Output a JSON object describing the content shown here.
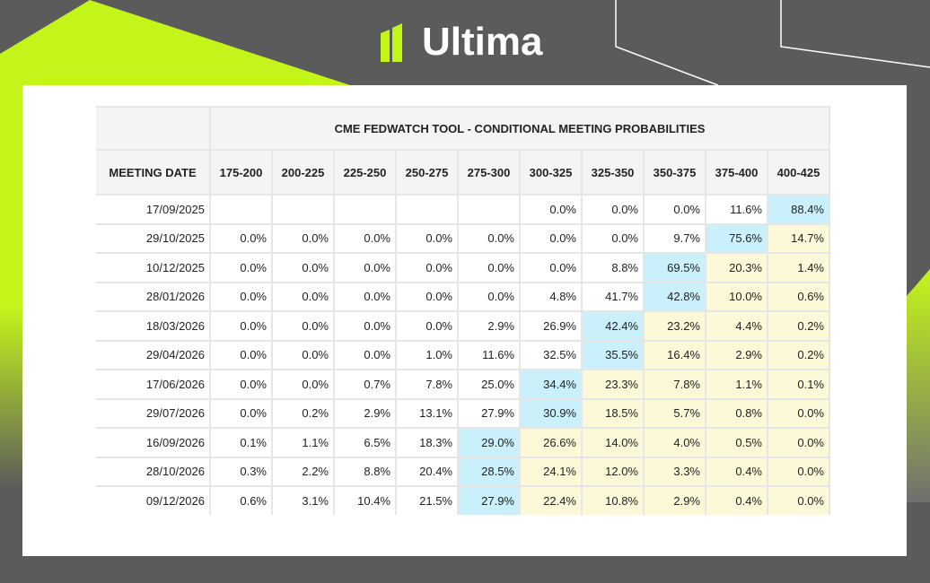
{
  "brand": {
    "name": "Ultima",
    "accent": "#c4f51a",
    "background": "#5b5b5b"
  },
  "table": {
    "title": "CME FEDWATCH TOOL - CONDITIONAL MEETING PROBABILITIES",
    "date_header": "MEETING DATE",
    "columns": [
      "175-200",
      "200-225",
      "225-250",
      "250-275",
      "275-300",
      "300-325",
      "325-350",
      "350-375",
      "375-400",
      "400-425"
    ],
    "highlight_colors": {
      "max": "#c9f0fb",
      "above_max": "#fbf9d8"
    },
    "rows": [
      {
        "date": "17/09/2025",
        "values": [
          "",
          "",
          "",
          "",
          "",
          "0.0%",
          "0.0%",
          "0.0%",
          "11.6%",
          "88.4%"
        ]
      },
      {
        "date": "29/10/2025",
        "values": [
          "0.0%",
          "0.0%",
          "0.0%",
          "0.0%",
          "0.0%",
          "0.0%",
          "0.0%",
          "9.7%",
          "75.6%",
          "14.7%"
        ]
      },
      {
        "date": "10/12/2025",
        "values": [
          "0.0%",
          "0.0%",
          "0.0%",
          "0.0%",
          "0.0%",
          "0.0%",
          "8.8%",
          "69.5%",
          "20.3%",
          "1.4%"
        ]
      },
      {
        "date": "28/01/2026",
        "values": [
          "0.0%",
          "0.0%",
          "0.0%",
          "0.0%",
          "0.0%",
          "4.8%",
          "41.7%",
          "42.8%",
          "10.0%",
          "0.6%"
        ]
      },
      {
        "date": "18/03/2026",
        "values": [
          "0.0%",
          "0.0%",
          "0.0%",
          "0.0%",
          "2.9%",
          "26.9%",
          "42.4%",
          "23.2%",
          "4.4%",
          "0.2%"
        ]
      },
      {
        "date": "29/04/2026",
        "values": [
          "0.0%",
          "0.0%",
          "0.0%",
          "1.0%",
          "11.6%",
          "32.5%",
          "35.5%",
          "16.4%",
          "2.9%",
          "0.2%"
        ]
      },
      {
        "date": "17/06/2026",
        "values": [
          "0.0%",
          "0.0%",
          "0.7%",
          "7.8%",
          "25.0%",
          "34.4%",
          "23.3%",
          "7.8%",
          "1.1%",
          "0.1%"
        ]
      },
      {
        "date": "29/07/2026",
        "values": [
          "0.0%",
          "0.2%",
          "2.9%",
          "13.1%",
          "27.9%",
          "30.9%",
          "18.5%",
          "5.7%",
          "0.8%",
          "0.0%"
        ]
      },
      {
        "date": "16/09/2026",
        "values": [
          "0.1%",
          "1.1%",
          "6.5%",
          "18.3%",
          "29.0%",
          "26.6%",
          "14.0%",
          "4.0%",
          "0.5%",
          "0.0%"
        ]
      },
      {
        "date": "28/10/2026",
        "values": [
          "0.3%",
          "2.2%",
          "8.8%",
          "20.4%",
          "28.5%",
          "24.1%",
          "12.0%",
          "3.3%",
          "0.4%",
          "0.0%"
        ]
      },
      {
        "date": "09/12/2026",
        "values": [
          "0.6%",
          "3.1%",
          "10.4%",
          "21.5%",
          "27.9%",
          "22.4%",
          "10.8%",
          "2.9%",
          "0.4%",
          "0.0%"
        ]
      }
    ]
  }
}
